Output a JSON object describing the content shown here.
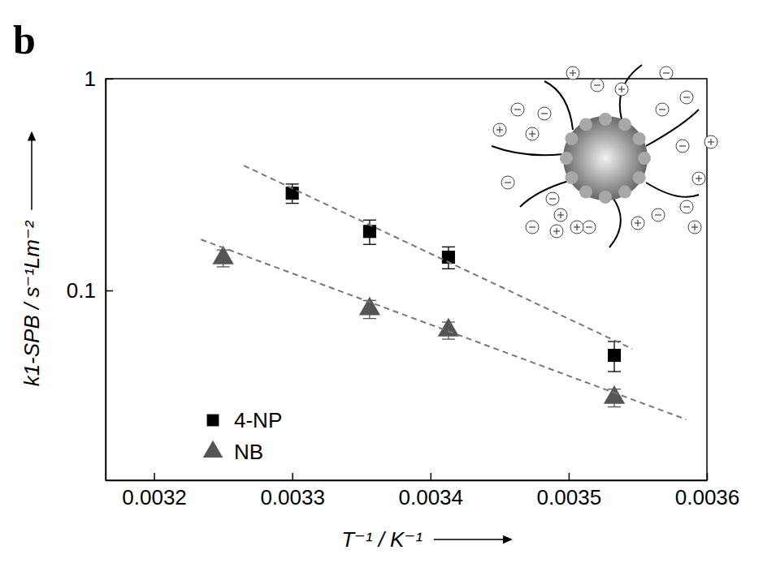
{
  "chart_data": {
    "type": "scatter",
    "annotations": [
      "b"
    ],
    "x_label": "T⁻¹ / K⁻¹",
    "y_label": "k1-SPB / s⁻¹Lm⁻²",
    "log": "y",
    "grid": false,
    "legend": "lower left",
    "xlim": [
      0.003165,
      0.0036
    ],
    "xticks": [
      0.0032,
      0.0033,
      0.0034,
      0.0035,
      0.0036
    ],
    "ylim": [
      0.0127,
      1
    ],
    "yticks": [
      0.1,
      1
    ],
    "series": [
      {
        "name": "4-NP",
        "type": "scatter",
        "marker": "square",
        "color": "#000000",
        "x": [
          0.0033,
          0.003356,
          0.003413,
          0.003533
        ],
        "values": [
          0.288,
          0.19,
          0.1436,
          0.0494
        ],
        "errors": [
          0.03,
          0.025,
          0.017,
          0.008
        ]
      },
      {
        "name": "NB",
        "type": "scatter",
        "marker": "triangle",
        "color": "#555555",
        "x": [
          0.00325,
          0.003356,
          0.003413,
          0.003533
        ],
        "values": [
          0.1423,
          0.0817,
          0.0649,
          0.0312
        ],
        "errors": [
          0.013,
          0.008,
          0.006,
          0.003
        ]
      },
      {
        "type": "line",
        "line_style": "dashed",
        "color": "#777777",
        "x": [
          0.003265,
          0.003546
        ],
        "values": [
          0.389,
          0.053
        ]
      },
      {
        "type": "line",
        "line_style": "dashed",
        "color": "#777777",
        "x": [
          0.003234,
          0.003585
        ],
        "values": [
          0.174,
          0.0246
        ]
      }
    ]
  }
}
